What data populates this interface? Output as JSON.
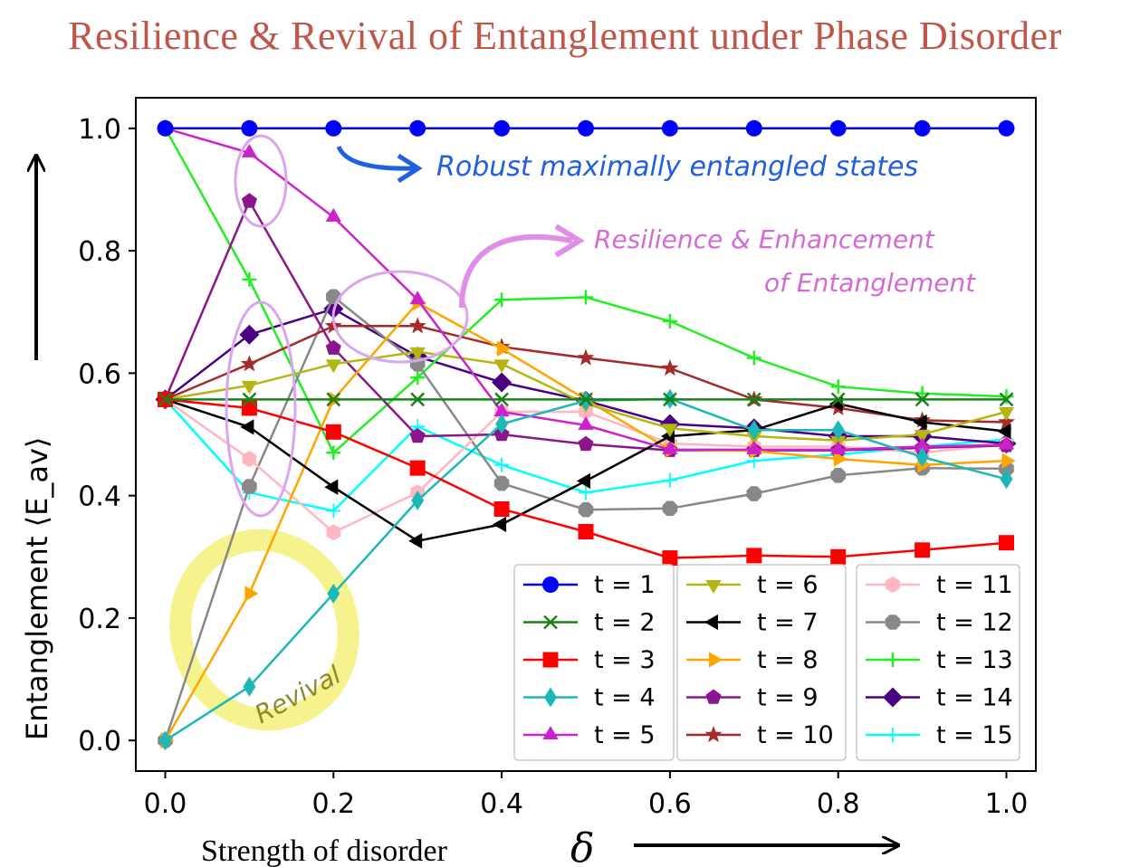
{
  "title": "Resilience & Revival of Entanglement under Phase Disorder",
  "annotations": {
    "robust": "Robust maximally entangled states",
    "resilience_line1": "Resilience & Enhancement",
    "resilience_line2": "of Entanglement",
    "revival": "Revival"
  },
  "colors": {
    "title": "#c0564a",
    "robust_note": "#1f5fe0",
    "resilience_note": "#d46ad4",
    "resilience_ellipse": "#d9a6ee",
    "revival_highlight": "#f4f07a",
    "revival_text": "#8a8a30"
  },
  "chart_data": {
    "type": "line",
    "xlabel": "Strength of disorder",
    "xsymbol": "δ",
    "ylabel": "Entanglement ⟨E_av⟩",
    "xlim": [
      -0.035,
      1.035
    ],
    "ylim": [
      -0.05,
      1.05
    ],
    "xticks": [
      "0.0",
      "0.2",
      "0.4",
      "0.6",
      "0.8",
      "1.0"
    ],
    "yticks": [
      "0.0",
      "0.2",
      "0.4",
      "0.6",
      "0.8",
      "1.0"
    ],
    "grid": false,
    "legend_position": "bottom-right",
    "x": [
      0.0,
      0.1,
      0.2,
      0.3,
      0.4,
      0.5,
      0.6,
      0.7,
      0.8,
      0.9,
      1.0
    ],
    "series": [
      {
        "name": "t = 1",
        "color": "#0000ff",
        "marker": "circle",
        "values": [
          1.0,
          1.0,
          1.0,
          1.0,
          1.0,
          1.0,
          1.0,
          1.0,
          1.0,
          1.0,
          1.0
        ]
      },
      {
        "name": "t = 2",
        "color": "#1a801a",
        "marker": "x",
        "values": [
          0.557,
          0.557,
          0.557,
          0.557,
          0.557,
          0.557,
          0.557,
          0.557,
          0.557,
          0.557,
          0.557
        ]
      },
      {
        "name": "t = 3",
        "color": "#ff0000",
        "marker": "square",
        "values": [
          0.557,
          0.543,
          0.504,
          0.445,
          0.378,
          0.341,
          0.298,
          0.302,
          0.3,
          0.311,
          0.323
        ]
      },
      {
        "name": "t = 4",
        "color": "#1cb8b8",
        "marker": "thin_diamond",
        "values": [
          0.0,
          0.088,
          0.24,
          0.392,
          0.517,
          0.555,
          0.558,
          0.507,
          0.507,
          0.463,
          0.427
        ]
      },
      {
        "name": "t = 5",
        "color": "#cc22cc",
        "marker": "triangle_up",
        "values": [
          1.0,
          0.96,
          0.855,
          0.72,
          0.537,
          0.515,
          0.475,
          0.475,
          0.475,
          0.48,
          0.483
        ]
      },
      {
        "name": "t = 6",
        "color": "#b5b512",
        "marker": "triangle_down",
        "values": [
          0.557,
          0.58,
          0.615,
          0.635,
          0.615,
          0.55,
          0.51,
          0.497,
          0.49,
          0.5,
          0.537
        ]
      },
      {
        "name": "t = 7",
        "color": "#000000",
        "marker": "triangle_left",
        "values": [
          0.557,
          0.512,
          0.414,
          0.326,
          0.353,
          0.424,
          0.497,
          0.507,
          0.55,
          0.52,
          0.505
        ]
      },
      {
        "name": "t = 8",
        "color": "#ffa500",
        "marker": "triangle_right",
        "values": [
          0.0,
          0.24,
          0.557,
          0.715,
          0.64,
          0.557,
          0.475,
          0.473,
          0.46,
          0.45,
          0.457
        ]
      },
      {
        "name": "t = 9",
        "color": "#8b158b",
        "marker": "pentagon",
        "values": [
          0.557,
          0.881,
          0.641,
          0.497,
          0.5,
          0.484,
          0.474,
          0.474,
          0.474,
          0.478,
          0.482
        ]
      },
      {
        "name": "t = 10",
        "color": "#a52a2a",
        "marker": "star",
        "values": [
          0.557,
          0.615,
          0.677,
          0.677,
          0.643,
          0.625,
          0.608,
          0.557,
          0.543,
          0.523,
          0.52
        ]
      },
      {
        "name": "t = 11",
        "color": "#ffb6c1",
        "marker": "hexagon",
        "values": [
          0.557,
          0.46,
          0.34,
          0.405,
          0.537,
          0.537,
          0.485,
          0.48,
          0.48,
          0.47,
          0.484
        ]
      },
      {
        "name": "t = 12",
        "color": "#888888",
        "marker": "octagon",
        "values": [
          0.0,
          0.415,
          0.725,
          0.615,
          0.42,
          0.377,
          0.379,
          0.403,
          0.433,
          0.445,
          0.444
        ]
      },
      {
        "name": "t = 13",
        "color": "#22ee22",
        "marker": "plus",
        "values": [
          1.0,
          0.753,
          0.47,
          0.593,
          0.72,
          0.724,
          0.685,
          0.625,
          0.578,
          0.567,
          0.562
        ]
      },
      {
        "name": "t = 14",
        "color": "#4b0082",
        "marker": "diamond",
        "values": [
          0.557,
          0.663,
          0.705,
          0.627,
          0.585,
          0.555,
          0.517,
          0.51,
          0.497,
          0.497,
          0.485
        ]
      },
      {
        "name": "t = 15",
        "color": "#00ffff",
        "marker": "thin_plus",
        "values": [
          0.557,
          0.405,
          0.375,
          0.513,
          0.45,
          0.405,
          0.425,
          0.457,
          0.467,
          0.48,
          0.492
        ]
      }
    ]
  }
}
